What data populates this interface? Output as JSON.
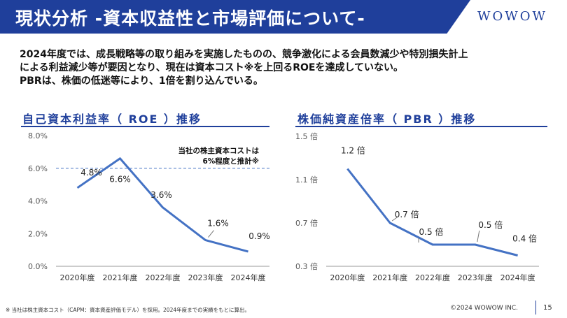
{
  "header": {
    "title": "現状分析 -資本収益性と市場評価について-",
    "logo": "WOWOW"
  },
  "intro": {
    "lines": [
      "2024年度では、成長戦略等の取り組みを実施したものの、競争激化による会員数減少や特別損失計上",
      "による利益減少等が要因となり、現在は資本コスト※を上回るROEを達成していない。",
      "PBRは、株価の低迷等により、1倍を割り込んでいる。"
    ]
  },
  "colors": {
    "accent": "#1f3f9b",
    "line": "#4472c4"
  },
  "chart_data": [
    {
      "type": "line",
      "title": "自己資本利益率（ ROE ）推移",
      "x": [
        "2020年度",
        "2021年度",
        "2022年度",
        "2023年度",
        "2024年度"
      ],
      "series": [
        {
          "values": [
            4.8,
            6.6,
            3.6,
            1.6,
            0.9
          ]
        }
      ],
      "data_labels": [
        "4.8%",
        "6.6%",
        "3.6%",
        "1.6%",
        "0.9%"
      ],
      "y_ticks": [
        "0.0%",
        "2.0%",
        "4.0%",
        "6.0%",
        "8.0%"
      ],
      "ylim": [
        0,
        8
      ],
      "reference_line": {
        "value": 6.0,
        "label_lines": [
          "当社の株主資本コストは",
          "6%程度と推計※"
        ]
      },
      "grid": false
    },
    {
      "type": "line",
      "title": "株価純資産倍率（ PBR ）推移",
      "x": [
        "2020年度",
        "2021年度",
        "2022年度",
        "2023年度",
        "2024年度"
      ],
      "series": [
        {
          "values": [
            1.2,
            0.7,
            0.5,
            0.5,
            0.4
          ]
        }
      ],
      "data_labels": [
        "1.2 倍",
        "0.7 倍",
        "0.5 倍",
        "0.5 倍",
        "0.4 倍"
      ],
      "y_ticks": [
        "0.3 倍",
        "0.7 倍",
        "1.1 倍",
        "1.5 倍"
      ],
      "ylim": [
        0.3,
        1.5
      ],
      "grid": false
    }
  ],
  "footer": {
    "note": "※ 当社は株主資本コスト（CAPM：資本資産評価モデル）を採用。2024年度までの実績をもとに算出。",
    "copyright": "©2024 WOWOW INC.",
    "page": "15"
  }
}
